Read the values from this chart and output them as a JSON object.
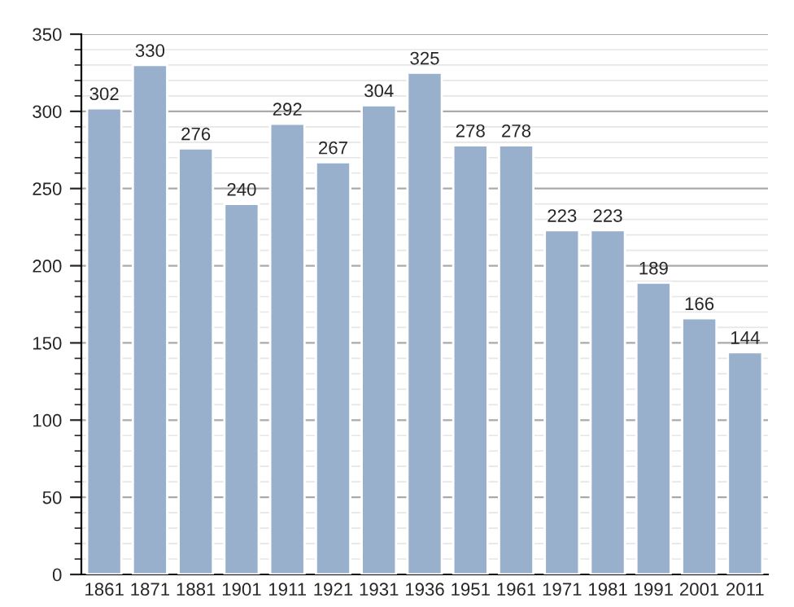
{
  "chart_data": {
    "type": "bar",
    "categories": [
      "1861",
      "1871",
      "1881",
      "1901",
      "1911",
      "1921",
      "1931",
      "1936",
      "1951",
      "1961",
      "1971",
      "1981",
      "1991",
      "2001",
      "2011"
    ],
    "values": [
      302,
      330,
      276,
      240,
      292,
      267,
      304,
      325,
      278,
      278,
      223,
      223,
      189,
      166,
      144
    ],
    "color": "#98b0cc",
    "ylim": [
      0,
      350
    ],
    "yticks": [
      0,
      50,
      100,
      150,
      200,
      250,
      300,
      350
    ],
    "grid": "y",
    "data_labels": true
  }
}
